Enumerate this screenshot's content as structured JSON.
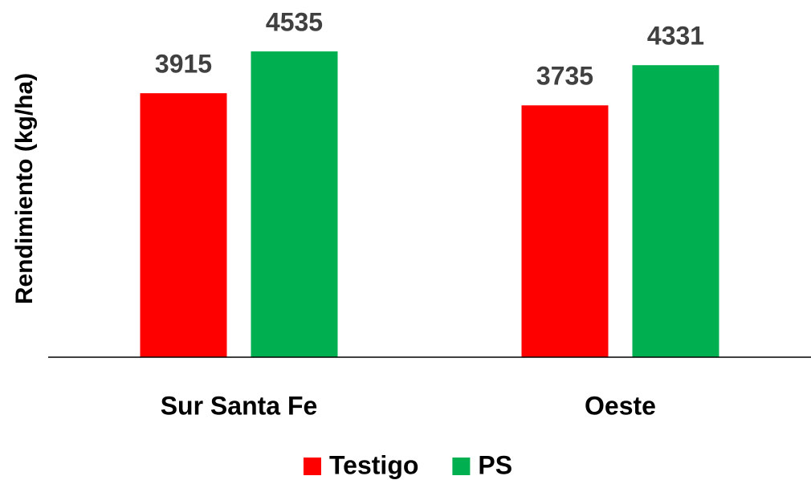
{
  "chart_data": {
    "type": "bar",
    "y_label": "Rendimiento (kg/ha)",
    "categories": [
      "Sur Santa Fe",
      "Oeste"
    ],
    "series": [
      {
        "name": "Testigo",
        "color": "#ff0000",
        "values": [
          3915,
          3735
        ]
      },
      {
        "name": "PS",
        "color": "#00b050",
        "values": [
          4535,
          4331
        ]
      }
    ],
    "ylim": [
      0,
      5000
    ],
    "legend": "bottom"
  }
}
